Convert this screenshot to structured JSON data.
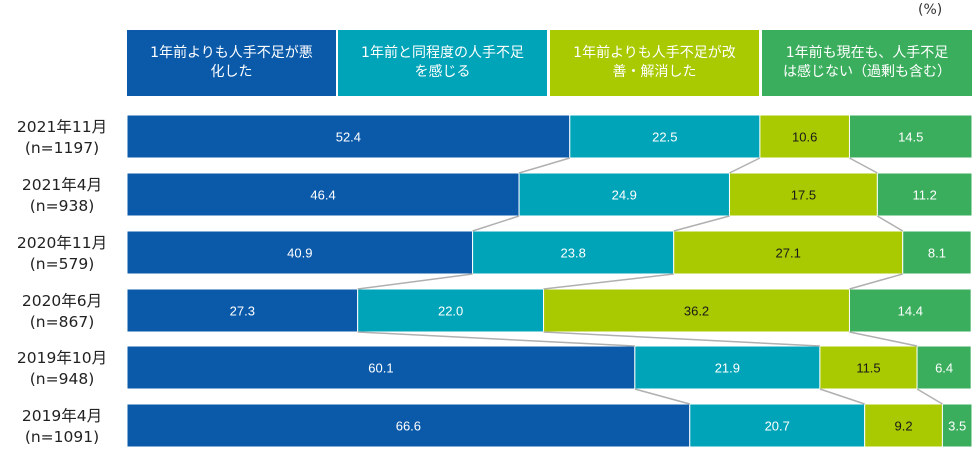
{
  "chart_data": {
    "type": "bar",
    "orientation": "horizontal",
    "stacked": true,
    "percent_stacked": true,
    "unit_label": "(%)",
    "categories": [
      {
        "name": "2021年11月",
        "n": "(n=1197)"
      },
      {
        "name": "2021年4月",
        "n": "(n=938)"
      },
      {
        "name": "2020年11月",
        "n": "(n=579)"
      },
      {
        "name": "2020年6月",
        "n": "(n=867)"
      },
      {
        "name": "2019年10月",
        "n": "(n=948)"
      },
      {
        "name": "2019年4月",
        "n": "(n=1091)"
      }
    ],
    "series": [
      {
        "name": "1年前よりも人手不足が悪化した",
        "legend_lines": [
          "1年前よりも人手不足が悪",
          "化した"
        ],
        "color": "#0b5aaa",
        "values": [
          52.4,
          46.4,
          40.9,
          27.3,
          60.1,
          66.6
        ]
      },
      {
        "name": "1年前と同程度の人手不足を感じる",
        "legend_lines": [
          "1年前と同程度の人手不足",
          "を感じる"
        ],
        "color": "#00a4b8",
        "values": [
          22.5,
          24.9,
          23.8,
          22.0,
          21.9,
          20.7
        ]
      },
      {
        "name": "1年前よりも人手不足が改善・解消した",
        "legend_lines": [
          "1年前よりも人手不足が改",
          "善・解消した"
        ],
        "color": "#a9c900",
        "values": [
          10.6,
          17.5,
          27.1,
          36.2,
          11.5,
          9.2
        ]
      },
      {
        "name": "1年前も現在も、人手不足は感じない（過剰も含む）",
        "legend_lines": [
          "1年前も現在も、人手不足",
          "は感じない（過剰も含む）"
        ],
        "color": "#3aae5c",
        "values": [
          14.5,
          11.2,
          8.1,
          14.4,
          6.4,
          3.5
        ]
      }
    ],
    "value_labels": [
      [
        "52.4",
        "22.5",
        "10.6",
        "14.5"
      ],
      [
        "46.4",
        "24.9",
        "17.5",
        "11.2"
      ],
      [
        "40.9",
        "23.8",
        "27.1",
        "8.1"
      ],
      [
        "27.3",
        "22.0",
        "36.2",
        "14.4"
      ],
      [
        "60.1",
        "21.9",
        "11.5",
        "6.4"
      ],
      [
        "66.6",
        "20.7",
        "9.2",
        "3.5"
      ]
    ],
    "label_colors": [
      "#ffffff",
      "#ffffff",
      "#1a1a1a",
      "#ffffff"
    ],
    "connector_color": "#b0b0b0",
    "xlim": [
      0,
      100
    ],
    "grid": false,
    "legend_position": "top"
  }
}
